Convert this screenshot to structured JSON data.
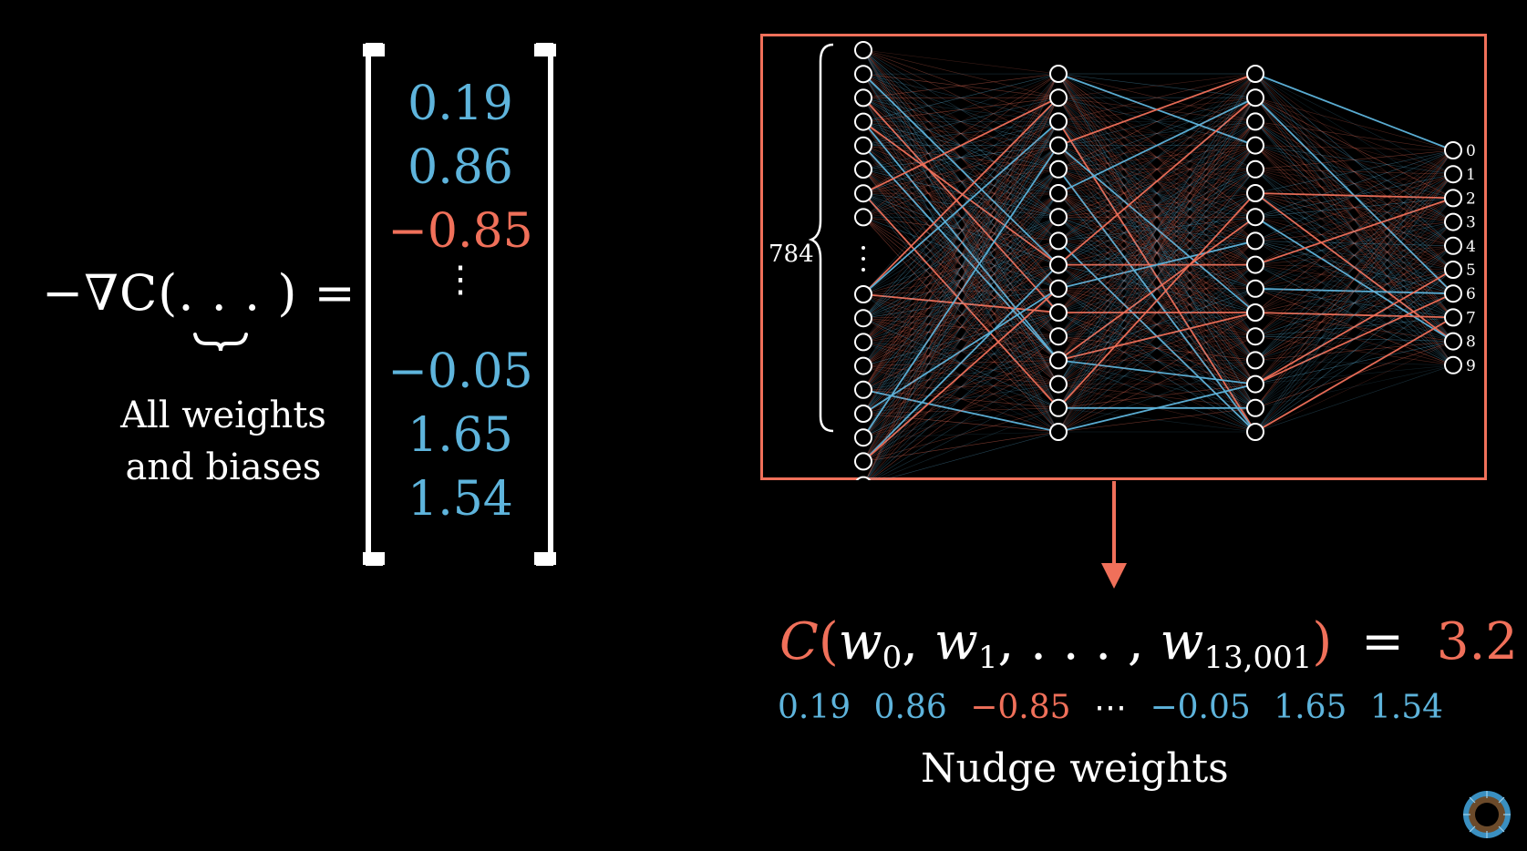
{
  "colors": {
    "blue": "#5eb4dc",
    "red": "#f0705a",
    "white": "#ffffff",
    "background": "#000000"
  },
  "formula": {
    "text": "−∇C(. . . ) ="
  },
  "caption": {
    "line1": "All weights",
    "line2": "and biases"
  },
  "vector": {
    "entries": [
      {
        "text": "0.19",
        "color": "blue"
      },
      {
        "text": "0.86",
        "color": "blue"
      },
      {
        "text": "−0.85",
        "color": "red"
      },
      {
        "text": "−0.05",
        "color": "blue"
      },
      {
        "text": "1.65",
        "color": "blue"
      },
      {
        "text": "1.54",
        "color": "blue"
      }
    ],
    "ellipsis": "⋮"
  },
  "network": {
    "input_label": "784",
    "layers": [
      784,
      16,
      16,
      10
    ],
    "output_labels": [
      "0",
      "1",
      "2",
      "3",
      "4",
      "5",
      "6",
      "7",
      "8",
      "9"
    ],
    "visible_input_nodes": 17
  },
  "cost": {
    "fn": "C",
    "open": "(",
    "w": "w",
    "sub0": "0",
    "sub1": "1",
    "dots": ", . . . ,",
    "sublast": "13,001",
    "close": ")",
    "equals": "=",
    "value": "3.2"
  },
  "weights_row": {
    "values": [
      {
        "text": "0.19",
        "color": "blue"
      },
      {
        "text": "0.86",
        "color": "blue"
      },
      {
        "text": "−0.85",
        "color": "red"
      },
      {
        "text": "⋯",
        "color": "white"
      },
      {
        "text": "−0.05",
        "color": "blue"
      },
      {
        "text": "1.65",
        "color": "blue"
      },
      {
        "text": "1.54",
        "color": "blue"
      }
    ]
  },
  "nudge_label": "Nudge weights",
  "logo_icon": "pi-creature-eye-logo"
}
